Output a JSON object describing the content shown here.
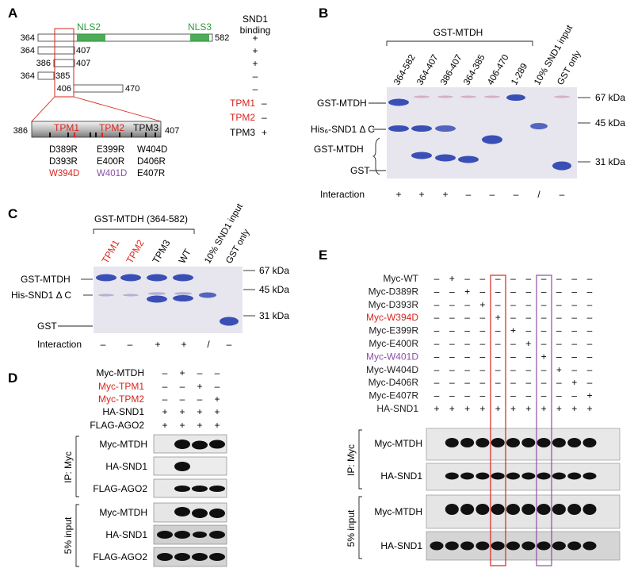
{
  "colors": {
    "red": "#d7261e",
    "purple": "#8b4fa6",
    "green": "#2a9d3a",
    "blue": "#3a4fb5",
    "gel": "#e7e5ee"
  },
  "panelA": {
    "letter": "A",
    "nls2": "NLS2",
    "nls3": "NLS3",
    "sndHeader": [
      "SND1",
      "binding"
    ],
    "constructs": [
      {
        "start": "364",
        "end": "582",
        "binding": "+"
      },
      {
        "start": "364",
        "end": "407",
        "binding": "+"
      },
      {
        "start": "386",
        "end": "407",
        "binding": "+"
      },
      {
        "start": "364",
        "end": "385",
        "binding": "–"
      },
      {
        "start": "406",
        "end": "470",
        "binding": "–"
      }
    ],
    "zoomStart": "386",
    "zoomEnd": "407",
    "tpm": [
      {
        "label": "TPM1",
        "binding": "–"
      },
      {
        "label": "TPM2",
        "binding": "–"
      },
      {
        "label": "TPM3",
        "binding": "+"
      }
    ],
    "mutCols": [
      [
        "D389R",
        "D393R",
        "W394D"
      ],
      [
        "E399R",
        "E400R",
        "W401D"
      ],
      [
        "W404D",
        "D406R",
        "E407R"
      ]
    ]
  },
  "panelB": {
    "letter": "B",
    "header": "GST-MTDH",
    "lanes": [
      "364-582",
      "364-407",
      "386-407",
      "364-385",
      "406-470",
      "1-289",
      "10% SND1 input",
      "GST only"
    ],
    "leftLabels": [
      "GST-MTDH",
      "His₆-SND1 Δ C",
      "GST-MTDH",
      "GST"
    ],
    "markers": [
      "67 kDa",
      "45 kDa",
      "31 kDa"
    ],
    "interactionLabel": "Interaction",
    "interaction": [
      "+",
      "+",
      "+",
      "–",
      "–",
      "–",
      "/",
      "–"
    ]
  },
  "panelC": {
    "letter": "C",
    "header": "GST-MTDH (364-582)",
    "lanes": [
      "TPM1",
      "TPM2",
      "TPM3",
      "WT",
      "10% SND1 input",
      "GST only"
    ],
    "leftLabels": [
      "GST-MTDH",
      "His-SND1 Δ C",
      "GST"
    ],
    "markers": [
      "67 kDa",
      "45 kDa",
      "31 kDa"
    ],
    "interactionLabel": "Interaction",
    "interaction": [
      "–",
      "–",
      "+",
      "+",
      "/",
      "–"
    ]
  },
  "panelD": {
    "letter": "D",
    "rows": [
      {
        "label": "Myc-MTDH",
        "vals": [
          "–",
          "+",
          "–",
          "–"
        ]
      },
      {
        "label": "Myc-TPM1",
        "vals": [
          "–",
          "–",
          "+",
          "–"
        ]
      },
      {
        "label": "Myc-TPM2",
        "vals": [
          "–",
          "–",
          "–",
          "+"
        ]
      },
      {
        "label": "HA-SND1",
        "vals": [
          "+",
          "+",
          "+",
          "+"
        ]
      },
      {
        "label": "FLAG-AGO2",
        "vals": [
          "+",
          "+",
          "+",
          "+"
        ]
      }
    ],
    "ipLabel": "IP: Myc",
    "inputLabel": "5% input",
    "blots": [
      "Myc-MTDH",
      "HA-SND1",
      "FLAG-AGO2",
      "Myc-MTDH",
      "HA-SND1",
      "FLAG-AGO2"
    ]
  },
  "panelE": {
    "letter": "E",
    "rows": [
      {
        "label": "Myc-WT",
        "vals": [
          "–",
          "+",
          "–",
          "–",
          "–",
          "–",
          "–",
          "–",
          "–",
          "–",
          "–"
        ]
      },
      {
        "label": "Myc-D389R",
        "vals": [
          "–",
          "–",
          "+",
          "–",
          "–",
          "–",
          "–",
          "–",
          "–",
          "–",
          "–"
        ]
      },
      {
        "label": "Myc-D393R",
        "vals": [
          "–",
          "–",
          "–",
          "+",
          "–",
          "–",
          "–",
          "–",
          "–",
          "–",
          "–"
        ]
      },
      {
        "label": "Myc-W394D",
        "vals": [
          "–",
          "–",
          "–",
          "–",
          "+",
          "–",
          "–",
          "–",
          "–",
          "–",
          "–"
        ]
      },
      {
        "label": "Myc-E399R",
        "vals": [
          "–",
          "–",
          "–",
          "–",
          "–",
          "+",
          "–",
          "–",
          "–",
          "–",
          "–"
        ]
      },
      {
        "label": "Myc-E400R",
        "vals": [
          "–",
          "–",
          "–",
          "–",
          "–",
          "–",
          "+",
          "–",
          "–",
          "–",
          "–"
        ]
      },
      {
        "label": "Myc-W401D",
        "vals": [
          "–",
          "–",
          "–",
          "–",
          "–",
          "–",
          "–",
          "+",
          "–",
          "–",
          "–"
        ]
      },
      {
        "label": "Myc-W404D",
        "vals": [
          "–",
          "–",
          "–",
          "–",
          "–",
          "–",
          "–",
          "–",
          "+",
          "–",
          "–"
        ]
      },
      {
        "label": "Myc-D406R",
        "vals": [
          "–",
          "–",
          "–",
          "–",
          "–",
          "–",
          "–",
          "–",
          "–",
          "+",
          "–"
        ]
      },
      {
        "label": "Myc-E407R",
        "vals": [
          "–",
          "–",
          "–",
          "–",
          "–",
          "–",
          "–",
          "–",
          "–",
          "–",
          "+"
        ]
      },
      {
        "label": "HA-SND1",
        "vals": [
          "+",
          "+",
          "+",
          "+",
          "+",
          "+",
          "+",
          "+",
          "+",
          "+",
          "+"
        ]
      }
    ],
    "ipLabel": "IP: Myc",
    "inputLabel": "5% input",
    "blots": [
      "Myc-MTDH",
      "HA-SND1",
      "Myc-MTDH",
      "HA-SND1"
    ]
  }
}
